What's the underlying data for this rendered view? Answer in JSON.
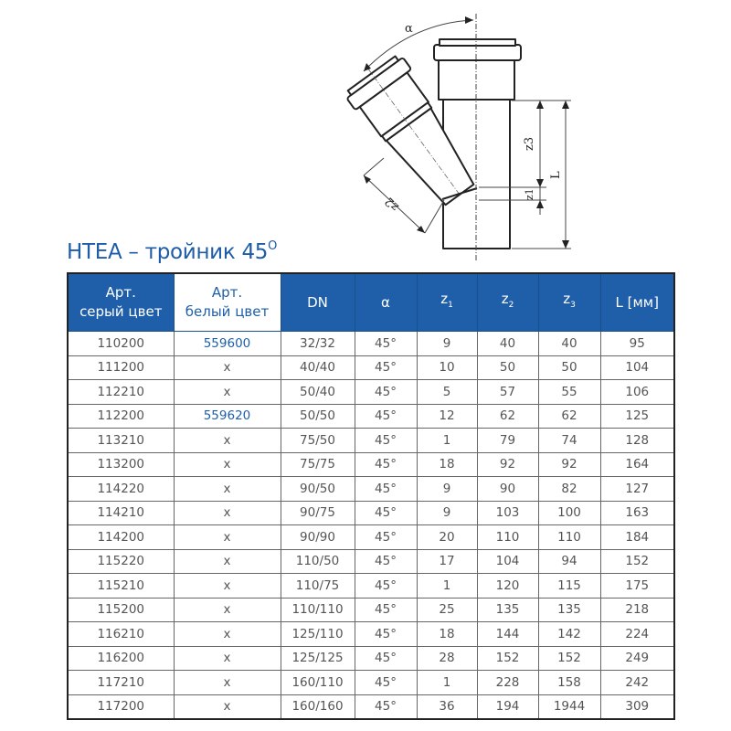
{
  "title": {
    "text": "HTEA – тройник 45",
    "sup": "O"
  },
  "drawing": {
    "labels": {
      "alpha": "α",
      "z1": "z1",
      "z2": "z2",
      "z3": "z3",
      "L": "L"
    }
  },
  "table": {
    "headers": [
      {
        "line1": "Арт.",
        "line2": "серый цвет"
      },
      {
        "line1": "Арт.",
        "line2": "белый цвет"
      },
      {
        "line1": "DN",
        "line2": ""
      },
      {
        "line1": "α",
        "line2": ""
      },
      {
        "line1": "z",
        "sub": "1"
      },
      {
        "line1": "z",
        "sub": "2"
      },
      {
        "line1": "z",
        "sub": "3"
      },
      {
        "line1": "L [мм]",
        "line2": ""
      }
    ],
    "rows": [
      [
        "110200",
        "559600",
        "32/32",
        "45°",
        "9",
        "40",
        "40",
        "95"
      ],
      [
        "111200",
        "x",
        "40/40",
        "45°",
        "10",
        "50",
        "50",
        "104"
      ],
      [
        "112210",
        "x",
        "50/40",
        "45°",
        "5",
        "57",
        "55",
        "106"
      ],
      [
        "112200",
        "559620",
        "50/50",
        "45°",
        "12",
        "62",
        "62",
        "125"
      ],
      [
        "113210",
        "x",
        "75/50",
        "45°",
        "1",
        "79",
        "74",
        "128"
      ],
      [
        "113200",
        "x",
        "75/75",
        "45°",
        "18",
        "92",
        "92",
        "164"
      ],
      [
        "114220",
        "x",
        "90/50",
        "45°",
        "9",
        "90",
        "82",
        "127"
      ],
      [
        "114210",
        "x",
        "90/75",
        "45°",
        "9",
        "103",
        "100",
        "163"
      ],
      [
        "114200",
        "x",
        "90/90",
        "45°",
        "20",
        "110",
        "110",
        "184"
      ],
      [
        "115220",
        "x",
        "110/50",
        "45°",
        "17",
        "104",
        "94",
        "152"
      ],
      [
        "115210",
        "x",
        "110/75",
        "45°",
        "1",
        "120",
        "115",
        "175"
      ],
      [
        "115200",
        "x",
        "110/110",
        "45°",
        "25",
        "135",
        "135",
        "218"
      ],
      [
        "116210",
        "x",
        "125/110",
        "45°",
        "18",
        "144",
        "142",
        "224"
      ],
      [
        "116200",
        "x",
        "125/125",
        "45°",
        "28",
        "152",
        "152",
        "249"
      ],
      [
        "117210",
        "x",
        "160/110",
        "45°",
        "1",
        "228",
        "158",
        "242"
      ],
      [
        "117200",
        "x",
        "160/160",
        "45°",
        "36",
        "194",
        "1944",
        "309"
      ]
    ]
  },
  "colors": {
    "header_blue": "#1f5fa9",
    "title_blue": "#1e5ca8",
    "text_grey": "#555555"
  }
}
